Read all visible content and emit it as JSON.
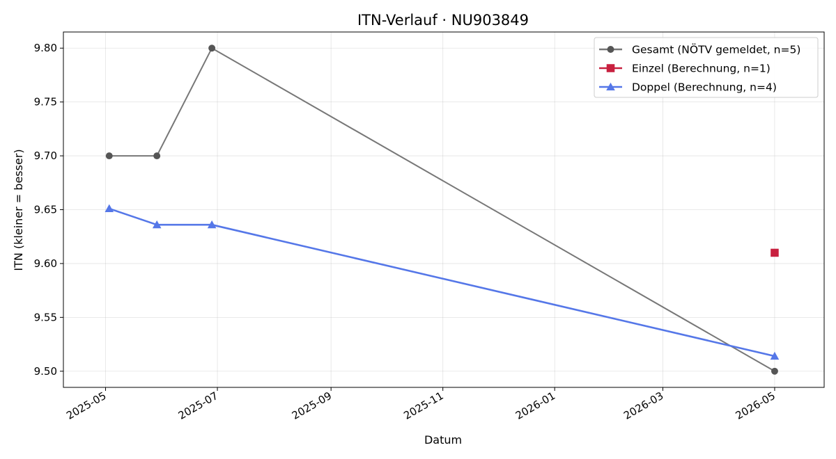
{
  "chart_data": {
    "type": "line",
    "title": "ITN-Verlauf · NU903849",
    "xlabel": "Datum",
    "ylabel": "ITN  (kleiner = besser)",
    "x_type": "date",
    "xlim": [
      "2025-04-08",
      "2026-05-28"
    ],
    "ylim": [
      9.485,
      9.815
    ],
    "x_ticks": [
      "2025-05-01",
      "2025-07-01",
      "2025-09-01",
      "2025-11-01",
      "2026-01-01",
      "2026-03-01",
      "2026-05-01"
    ],
    "x_tick_labels": [
      "2025-05",
      "2025-07",
      "2025-09",
      "2025-11",
      "2026-01",
      "2026-03",
      "2026-05"
    ],
    "y_ticks": [
      9.5,
      9.55,
      9.6,
      9.65,
      9.7,
      9.75,
      9.8
    ],
    "y_tick_labels": [
      "9.50",
      "9.55",
      "9.60",
      "9.65",
      "9.70",
      "9.75",
      "9.80"
    ],
    "grid": true,
    "legend_position": "top-right",
    "series": [
      {
        "name": "Gesamt (NÖTV gemeldet, n=5)",
        "color": "#777777",
        "marker_color": "#555555",
        "marker": "circle",
        "points": [
          {
            "x": "2025-05-03",
            "y": 9.7
          },
          {
            "x": "2025-05-29",
            "y": 9.7
          },
          {
            "x": "2025-06-28",
            "y": 9.8
          },
          {
            "x": "2026-05-01",
            "y": 9.5
          }
        ]
      },
      {
        "name": "Einzel (Berechnung, n=1)",
        "color": "#c8203f",
        "marker_color": "#c8203f",
        "marker": "square",
        "points": [
          {
            "x": "2026-05-01",
            "y": 9.61
          }
        ]
      },
      {
        "name": "Doppel (Berechnung, n=4)",
        "color": "#5577e8",
        "marker_color": "#5577e8",
        "marker": "triangle",
        "points": [
          {
            "x": "2025-05-03",
            "y": 9.651
          },
          {
            "x": "2025-05-29",
            "y": 9.636
          },
          {
            "x": "2025-06-28",
            "y": 9.636
          },
          {
            "x": "2026-05-01",
            "y": 9.514
          }
        ]
      }
    ]
  }
}
